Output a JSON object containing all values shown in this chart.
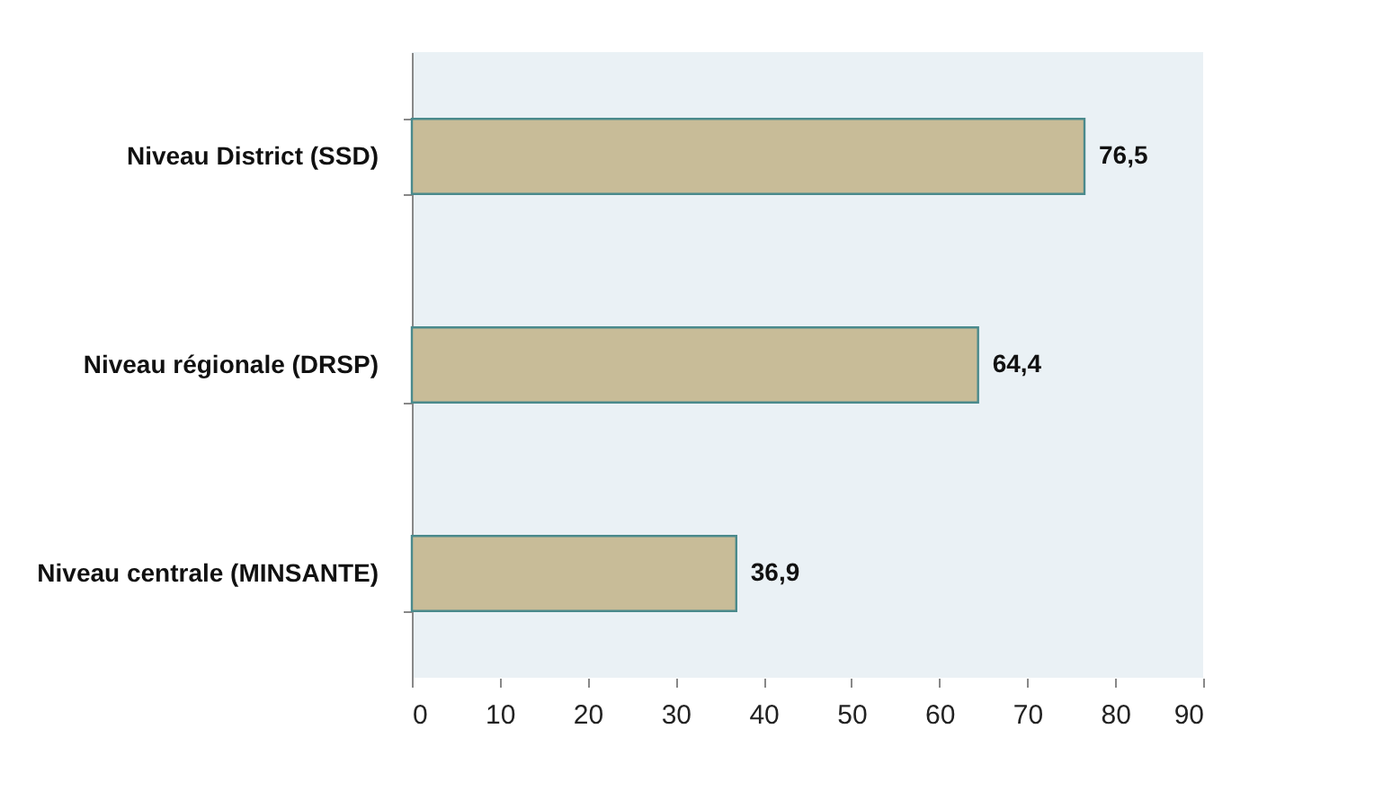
{
  "chart_data": {
    "type": "bar",
    "orientation": "horizontal",
    "categories": [
      "Niveau District (SSD)",
      "Niveau régionale (DRSP)",
      "Niveau centrale (MINSANTE)"
    ],
    "values": [
      76.5,
      64.4,
      36.9
    ],
    "value_labels": [
      "76,5",
      "64,4",
      "36,9"
    ],
    "color": "#c8bc98",
    "xlim": [
      0,
      90
    ],
    "xticks": [
      0,
      10,
      20,
      30,
      40,
      50,
      60,
      70,
      80,
      90
    ],
    "grid": false
  }
}
